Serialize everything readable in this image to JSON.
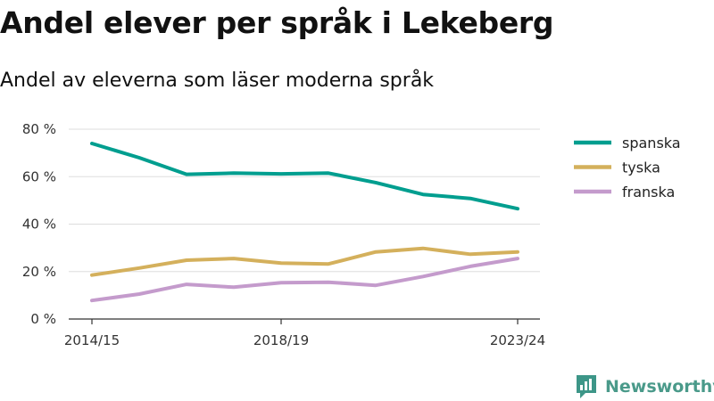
{
  "header": {
    "title": "Andel elever per språk i Lekeberg",
    "subtitle": "Andel av eleverna som läser moderna språk"
  },
  "brand": {
    "name": "Newsworthy",
    "icon": "newsworthy-logo-icon",
    "color": "#3d9688"
  },
  "chart_data": {
    "type": "line",
    "title": "Andel elever per språk i Lekeberg",
    "subtitle": "Andel av eleverna som läser moderna språk",
    "x": [
      "2014/15",
      "2015/16",
      "2016/17",
      "2017/18",
      "2018/19",
      "2019/20",
      "2020/21",
      "2021/22",
      "2022/23",
      "2023/24"
    ],
    "x_tick_labels": [
      "2014/15",
      "2018/19",
      "2023/24"
    ],
    "y_ticks": [
      0,
      20,
      40,
      60,
      80
    ],
    "y_tick_labels": [
      "0 %",
      "20 %",
      "40 %",
      "60 %",
      "80 %"
    ],
    "ylim": [
      0,
      80
    ],
    "grid": true,
    "legend_position": "right",
    "series": [
      {
        "name": "spanska",
        "color": "#009e8f",
        "values": [
          74,
          68,
          61,
          61.5,
          61.2,
          61.5,
          57.5,
          52.5,
          50.8,
          46.5
        ]
      },
      {
        "name": "tyska",
        "color": "#d4b05c",
        "values": [
          18.5,
          21.5,
          24.8,
          25.5,
          23.6,
          23.2,
          28.3,
          29.8,
          27.3,
          28.3
        ]
      },
      {
        "name": "franska",
        "color": "#c49bcc",
        "values": [
          7.8,
          10.5,
          14.6,
          13.4,
          15.3,
          15.5,
          14.2,
          17.9,
          22.2,
          25.5
        ]
      }
    ]
  }
}
